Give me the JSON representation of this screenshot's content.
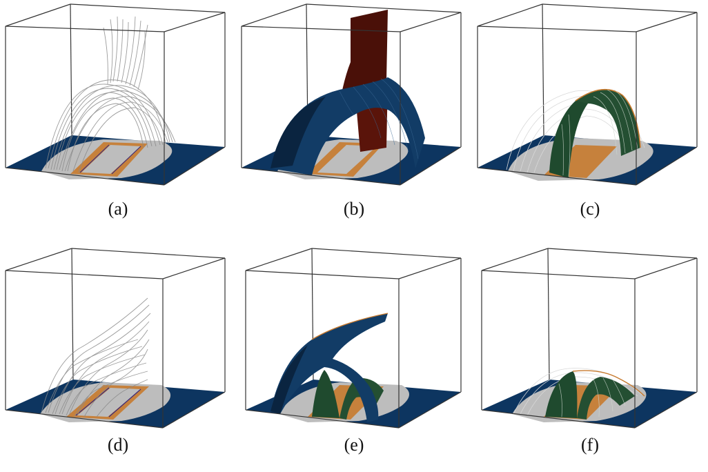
{
  "figure": {
    "panels": [
      {
        "id": "a",
        "label": "(a)",
        "kind": "streamlines-arch"
      },
      {
        "id": "b",
        "label": "(b)",
        "kind": "surface-arch-tall"
      },
      {
        "id": "c",
        "label": "(c)",
        "kind": "segmented-arch"
      },
      {
        "id": "d",
        "label": "(d)",
        "kind": "streamlines-lean"
      },
      {
        "id": "e",
        "label": "(e)",
        "kind": "surface-twisted"
      },
      {
        "id": "f",
        "label": "(f)",
        "kind": "segmented-low"
      }
    ],
    "colors": {
      "floor": "#0d3560",
      "patch": "#bdbdbd",
      "strip": "#c77a2e",
      "streamline": "#8a8a8a",
      "surface_blue": "#123c66",
      "surface_red": "#4a1008",
      "surface_green": "#1f4a2e",
      "box_edge": "#222222"
    }
  }
}
